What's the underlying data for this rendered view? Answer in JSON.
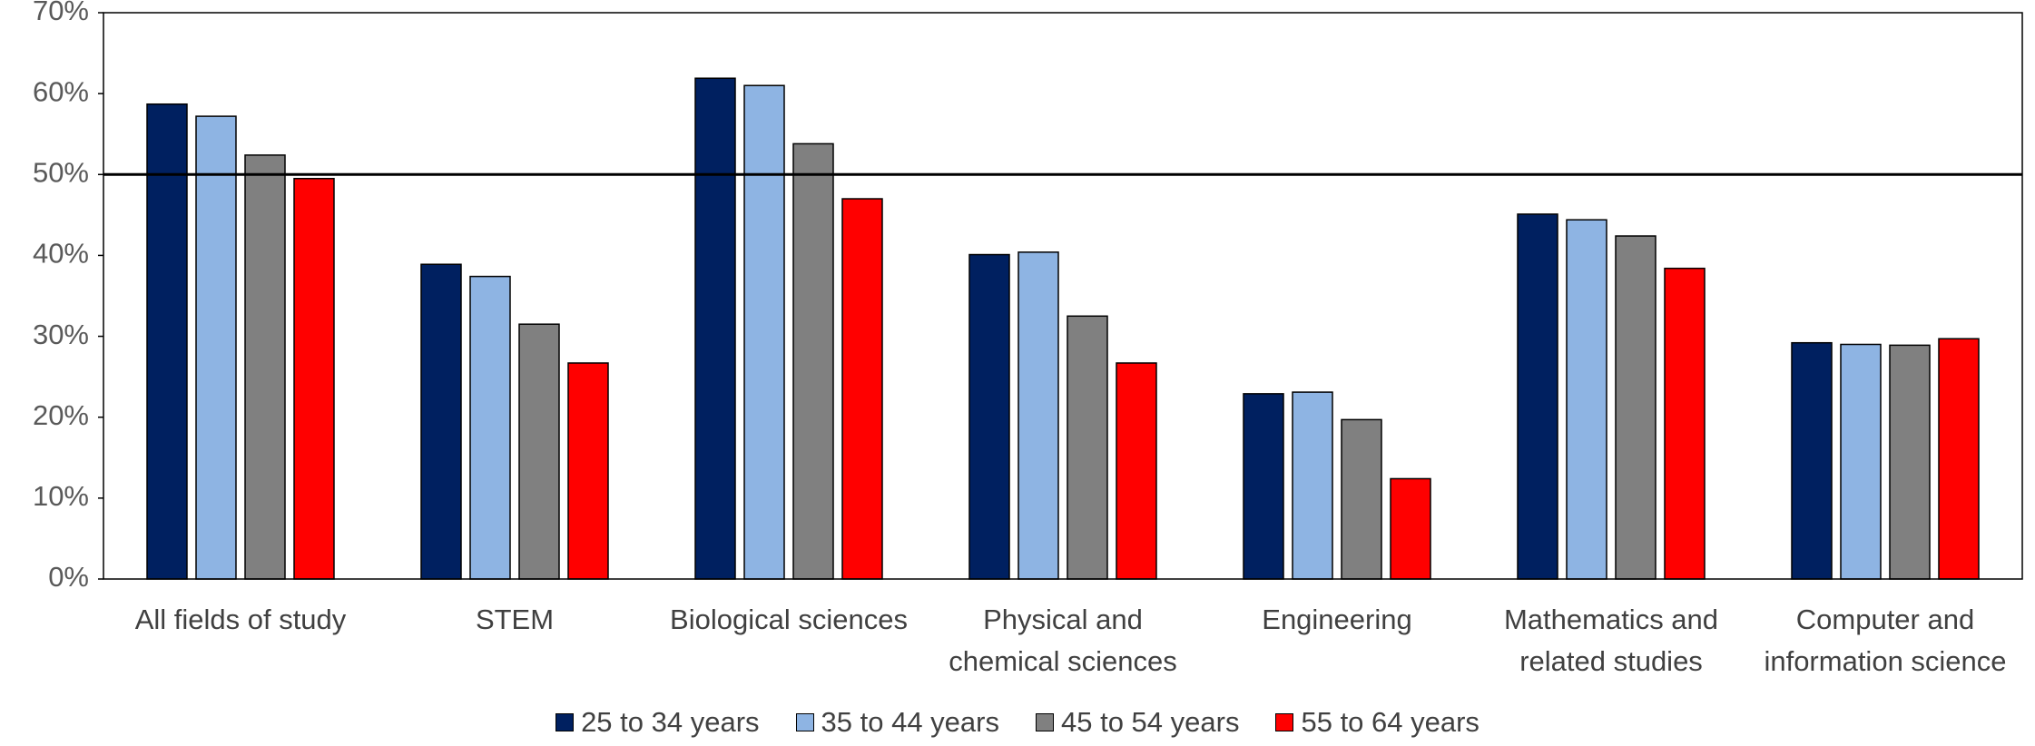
{
  "chart_data": {
    "type": "bar",
    "categories": [
      "All fields of study",
      "STEM",
      "Biological sciences",
      "Physical and\nchemical sciences",
      "Engineering",
      "Mathematics and\nrelated studies",
      "Computer and\ninformation science"
    ],
    "series": [
      {
        "name": "25 to 34 years",
        "color": "#002060",
        "values": [
          58.7,
          38.9,
          61.9,
          40.1,
          22.9,
          45.1,
          29.2
        ]
      },
      {
        "name": "35 to 44 years",
        "color": "#8eb4e3",
        "values": [
          57.2,
          37.4,
          61.0,
          40.4,
          23.1,
          44.4,
          29.0
        ]
      },
      {
        "name": "45 to 54 years",
        "color": "#808080",
        "values": [
          52.4,
          31.5,
          53.8,
          32.5,
          19.7,
          42.4,
          28.9
        ]
      },
      {
        "name": "55 to 64 years",
        "color": "#ff0000",
        "values": [
          49.5,
          26.7,
          47.0,
          26.7,
          12.4,
          38.4,
          29.7
        ]
      }
    ],
    "ylim": [
      0,
      70
    ],
    "yticks": [
      {
        "value": 0,
        "label": "0%"
      },
      {
        "value": 10,
        "label": "10%"
      },
      {
        "value": 20,
        "label": "20%"
      },
      {
        "value": 30,
        "label": "30%"
      },
      {
        "value": 40,
        "label": "40%"
      },
      {
        "value": 50,
        "label": "50%"
      },
      {
        "value": 60,
        "label": "60%"
      },
      {
        "value": 70,
        "label": "70%"
      }
    ],
    "reference_line": 50,
    "legend": "bottom"
  }
}
